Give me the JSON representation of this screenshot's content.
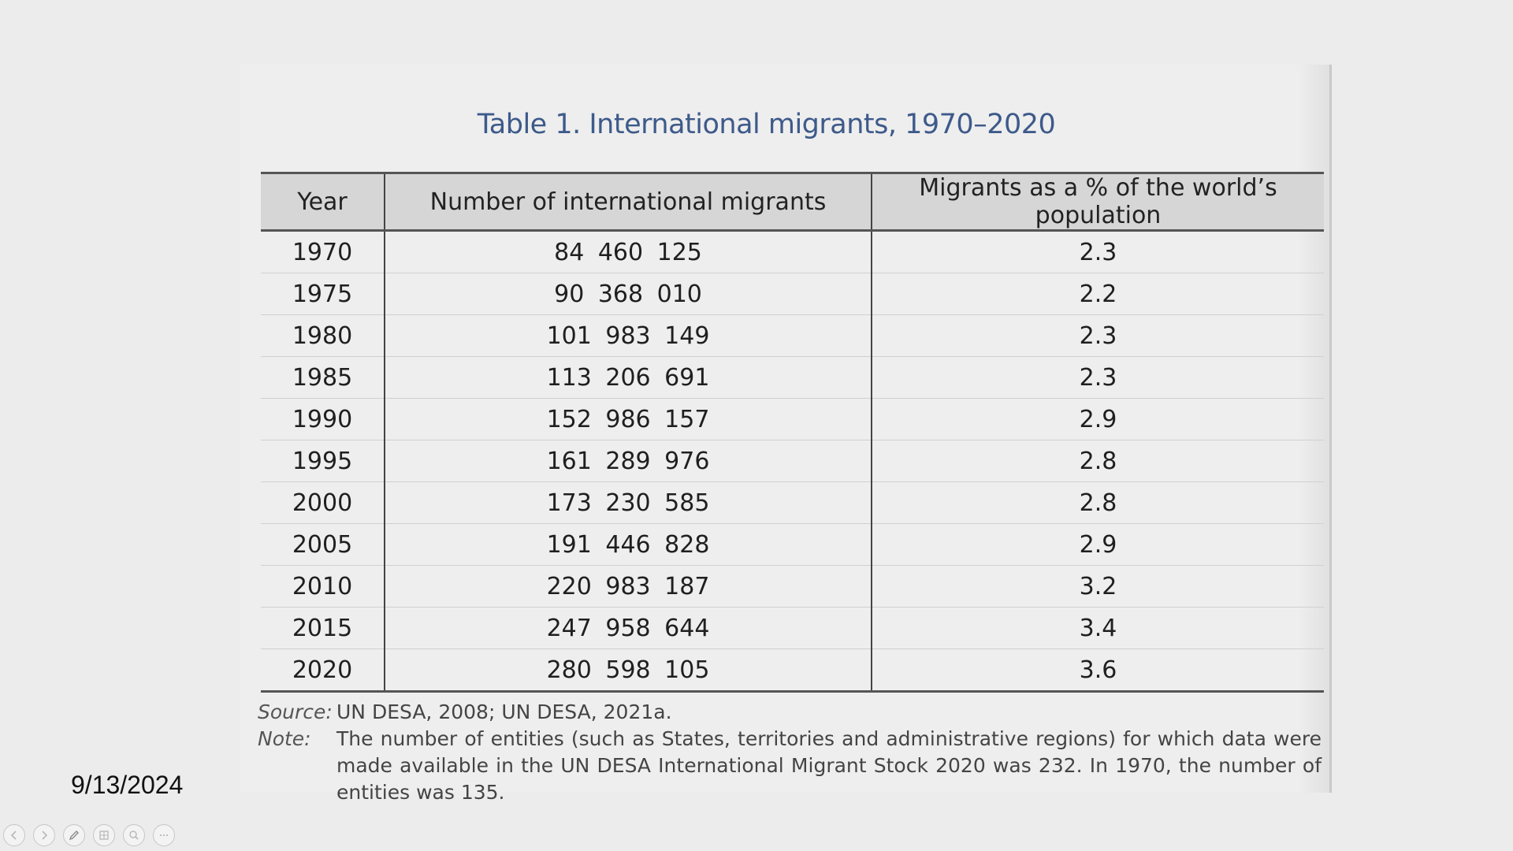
{
  "table": {
    "title": "Table 1. International migrants, 1970–2020",
    "headers": [
      "Year",
      "Number of international migrants",
      "Migrants as a % of the world’s population"
    ],
    "rows": [
      [
        "1970",
        "84 460 125",
        "2.3"
      ],
      [
        "1975",
        "90 368 010",
        "2.2"
      ],
      [
        "1980",
        "101 983 149",
        "2.3"
      ],
      [
        "1985",
        "113 206 691",
        "2.3"
      ],
      [
        "1990",
        "152 986 157",
        "2.9"
      ],
      [
        "1995",
        "161 289 976",
        "2.8"
      ],
      [
        "2000",
        "173 230 585",
        "2.8"
      ],
      [
        "2005",
        "191 446 828",
        "2.9"
      ],
      [
        "2010",
        "220 983 187",
        "3.2"
      ],
      [
        "2015",
        "247 958 644",
        "3.4"
      ],
      [
        "2020",
        "280 598 105",
        "3.6"
      ]
    ],
    "source_label": "Source:",
    "source_text": "UN DESA, 2008; UN DESA, 2021a.",
    "note_label": "Note:",
    "note_text": "The number of entities (such as States, territories and administrative regions) for which data were made available in the UN DESA International Migrant Stock 2020 was 232. In 1970, the number of entities was 135."
  },
  "slide": {
    "date": "9/13/2024"
  },
  "controls": [
    {
      "name": "previous-slide-button",
      "icon": "arrow-left-icon"
    },
    {
      "name": "next-slide-button",
      "icon": "arrow-right-icon"
    },
    {
      "name": "pen-tool-button",
      "icon": "pen-icon"
    },
    {
      "name": "see-all-slides-button",
      "icon": "slides-grid-icon"
    },
    {
      "name": "zoom-button",
      "icon": "magnifier-icon"
    },
    {
      "name": "more-options-button",
      "icon": "more-icon"
    }
  ]
}
